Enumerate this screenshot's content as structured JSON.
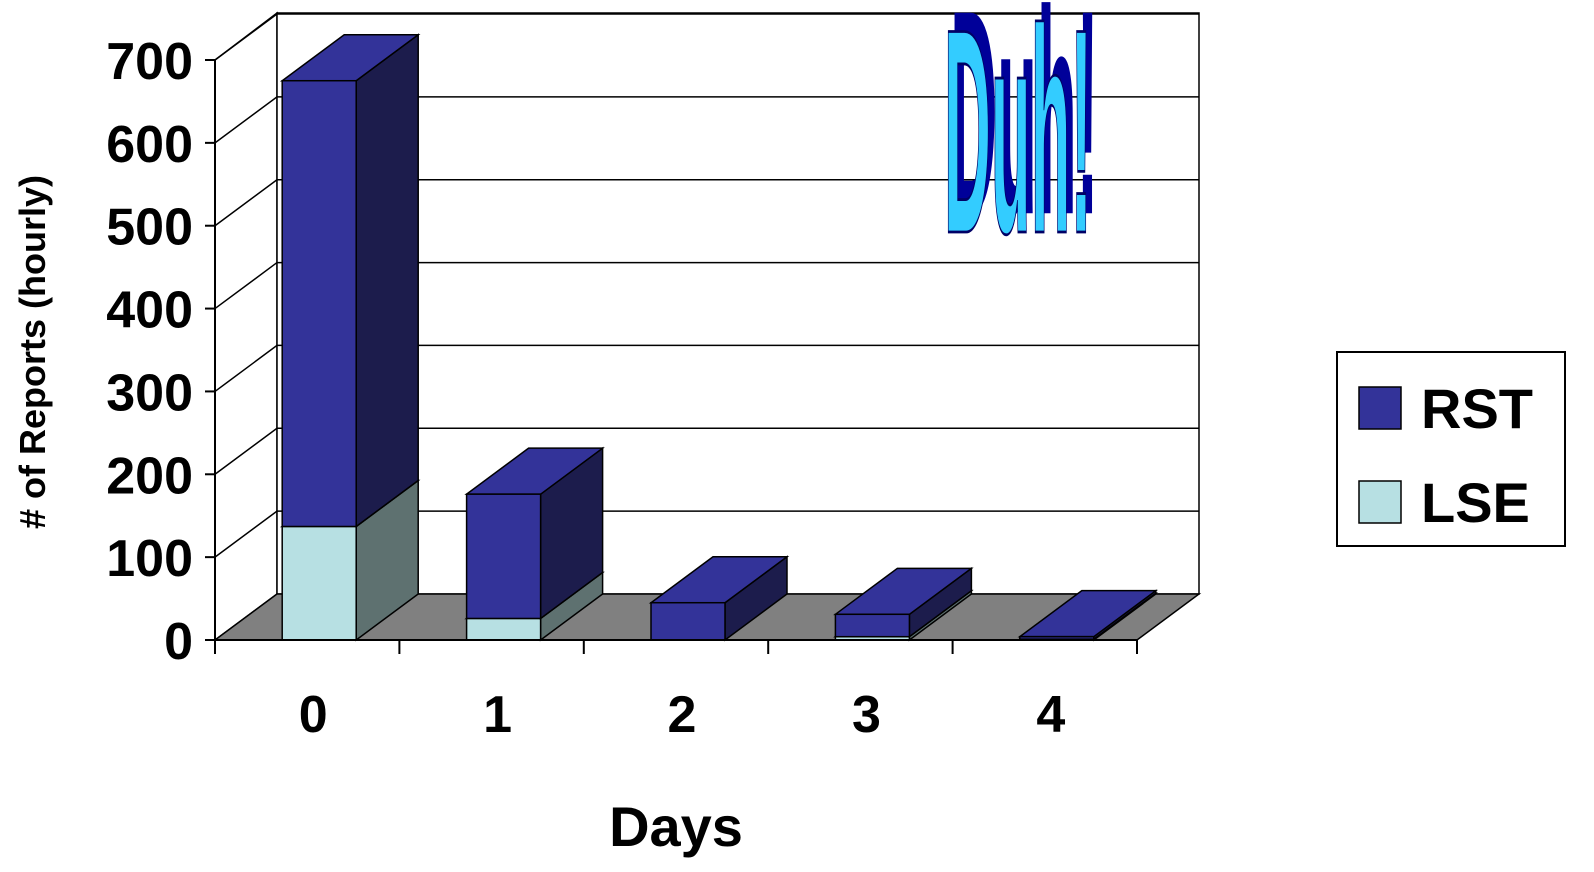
{
  "chart_data": {
    "type": "bar",
    "stacked": true,
    "three_d": true,
    "title": "",
    "xlabel": "Days",
    "ylabel": "# of Reports (hourly)",
    "categories": [
      "0",
      "1",
      "2",
      "3",
      "4"
    ],
    "ylim": [
      0,
      700
    ],
    "yticks": [
      "0",
      "100",
      "200",
      "300",
      "400",
      "500",
      "600",
      "700"
    ],
    "series": [
      {
        "name": "LSE",
        "values": [
          137,
          26,
          0,
          4,
          1
        ],
        "color": "#b7e0e3",
        "side_color": "#5e7170"
      },
      {
        "name": "RST",
        "values": [
          538,
          150,
          45,
          27,
          3
        ],
        "color": "#333399",
        "side_color": "#1c1c4c"
      }
    ],
    "grid": true,
    "legend_position": "right",
    "wall_color": "#ffffff",
    "floor_color": "#808080",
    "annotation": {
      "text": "Duh!",
      "fill": "#33ccff",
      "shadow": "#000099"
    }
  }
}
